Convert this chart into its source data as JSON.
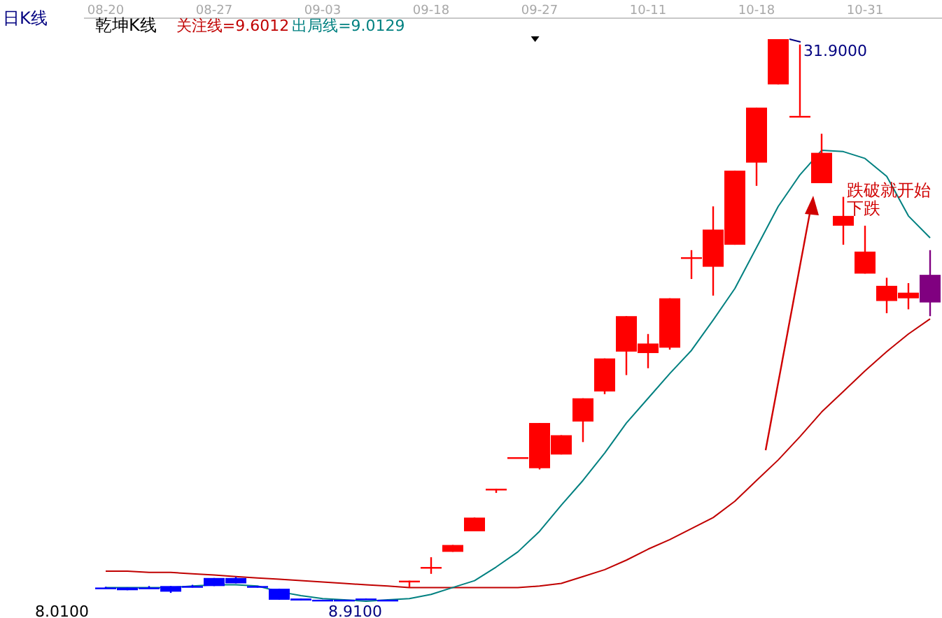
{
  "chart_data": {
    "type": "candlestick",
    "title": "日K线",
    "subtitle": "乾坤K线",
    "legend": "top left",
    "categories": [
      "08-20",
      null,
      null,
      null,
      null,
      "08-27",
      null,
      null,
      null,
      null,
      "09-03",
      null,
      null,
      null,
      null,
      "09-18",
      null,
      null,
      null,
      null,
      "09-27",
      null,
      null,
      null,
      null,
      "10-11",
      null,
      null,
      null,
      null,
      "10-18",
      null,
      null,
      null,
      null,
      "10-31",
      null,
      null,
      null
    ],
    "ohlc": [
      [
        9.47,
        9.5,
        9.44,
        9.45
      ],
      [
        9.47,
        9.47,
        9.36,
        9.36
      ],
      [
        9.47,
        9.53,
        9.42,
        9.45
      ],
      [
        9.53,
        9.53,
        9.25,
        9.3
      ],
      [
        9.53,
        9.58,
        9.47,
        9.5
      ],
      [
        9.86,
        9.86,
        9.53,
        9.53
      ],
      [
        9.86,
        9.9,
        9.64,
        9.64
      ],
      [
        9.53,
        9.53,
        9.47,
        9.5
      ],
      [
        9.42,
        9.42,
        8.97,
        8.97
      ],
      [
        9.02,
        9.02,
        8.94,
        8.94
      ],
      [
        8.97,
        8.97,
        8.91,
        8.94
      ],
      [
        8.97,
        8.97,
        8.94,
        8.94
      ],
      [
        9.02,
        9.02,
        8.97,
        8.97
      ],
      [
        8.97,
        8.97,
        8.94,
        8.94
      ],
      [
        9.73,
        9.75,
        9.47,
        9.75
      ],
      [
        10.29,
        10.71,
        10.03,
        10.31
      ],
      [
        10.93,
        11.21,
        10.93,
        11.21
      ],
      [
        11.77,
        12.33,
        11.77,
        12.33
      ],
      [
        13.49,
        13.51,
        13.34,
        13.51
      ],
      [
        14.78,
        14.8,
        14.78,
        14.8
      ],
      [
        14.35,
        16.2,
        14.3,
        16.2
      ],
      [
        14.91,
        15.7,
        14.91,
        15.7
      ],
      [
        16.26,
        17.21,
        15.42,
        17.21
      ],
      [
        17.49,
        18.84,
        17.38,
        18.84
      ],
      [
        19.12,
        20.57,
        18.16,
        20.57
      ],
      [
        19.06,
        19.84,
        18.44,
        19.45
      ],
      [
        19.28,
        21.3,
        19.2,
        21.3
      ],
      [
        22.96,
        23.27,
        22.09,
        22.98
      ],
      [
        22.59,
        25.06,
        21.41,
        24.11
      ],
      [
        23.49,
        26.52,
        23.49,
        26.52
      ],
      [
        26.85,
        29.1,
        25.9,
        29.1
      ],
      [
        30.05,
        31.9,
        30.05,
        31.9
      ],
      [
        28.76,
        31.68,
        28.76,
        28.76
      ],
      [
        26.01,
        28.03,
        26.01,
        27.25
      ],
      [
        24.27,
        25.45,
        23.49,
        24.67
      ],
      [
        22.31,
        24.27,
        22.31,
        23.21
      ],
      [
        21.19,
        22.14,
        20.69,
        21.81
      ],
      [
        21.3,
        21.92,
        20.85,
        21.53
      ],
      [
        21.13,
        23.27,
        20.57,
        22.26
      ]
    ],
    "colors": [
      "#0000ff",
      "#0000ff",
      "#0000ff",
      "#0000ff",
      "#0000ff",
      "#0000ff",
      "#0000ff",
      "#0000ff",
      "#0000ff",
      "#0000ff",
      "#0000ff",
      "#0000ff",
      "#0000ff",
      "#0000ff",
      "#ff0000",
      "#ff0000",
      "#ff0000",
      "#ff0000",
      "#ff0000",
      "#ff0000",
      "#ff0000",
      "#ff0000",
      "#ff0000",
      "#ff0000",
      "#ff0000",
      "#ff0000",
      "#ff0000",
      "#ff0000",
      "#ff0000",
      "#ff0000",
      "#ff0000",
      "#ff0000",
      "#ff0000",
      "#ff0000",
      "#ff0000",
      "#ff0000",
      "#ff0000",
      "#ff0000",
      "#800080"
    ],
    "series": [
      {
        "name": "关注线=9.6012",
        "type": "line",
        "color": "#c00000",
        "values": [
          10.14,
          10.14,
          10.09,
          10.09,
          10.03,
          9.98,
          9.92,
          9.86,
          9.81,
          9.75,
          9.7,
          9.64,
          9.58,
          9.53,
          9.47,
          9.47,
          9.47,
          9.47,
          9.47,
          9.47,
          9.53,
          9.64,
          9.92,
          10.2,
          10.59,
          11.04,
          11.43,
          11.88,
          12.33,
          13.0,
          13.85,
          14.69,
          15.64,
          16.65,
          17.49,
          18.33,
          19.12,
          19.84,
          20.46
        ]
      },
      {
        "name": "出局线=9.0129",
        "type": "line",
        "color": "#008080",
        "values": [
          9.47,
          9.47,
          9.47,
          9.47,
          9.53,
          9.58,
          9.58,
          9.53,
          9.3,
          9.14,
          9.02,
          8.97,
          8.91,
          8.97,
          9.02,
          9.19,
          9.47,
          9.75,
          10.31,
          10.93,
          11.77,
          12.84,
          13.85,
          14.97,
          16.2,
          17.21,
          18.22,
          19.17,
          20.41,
          21.7,
          23.38,
          25.06,
          26.35,
          27.35,
          27.3,
          27.02,
          26.29,
          24.67,
          23.77
        ]
      }
    ],
    "annotations": [
      "跌破就开始下跌",
      "31.9000",
      "8.9100",
      "8.0100"
    ]
  }
}
